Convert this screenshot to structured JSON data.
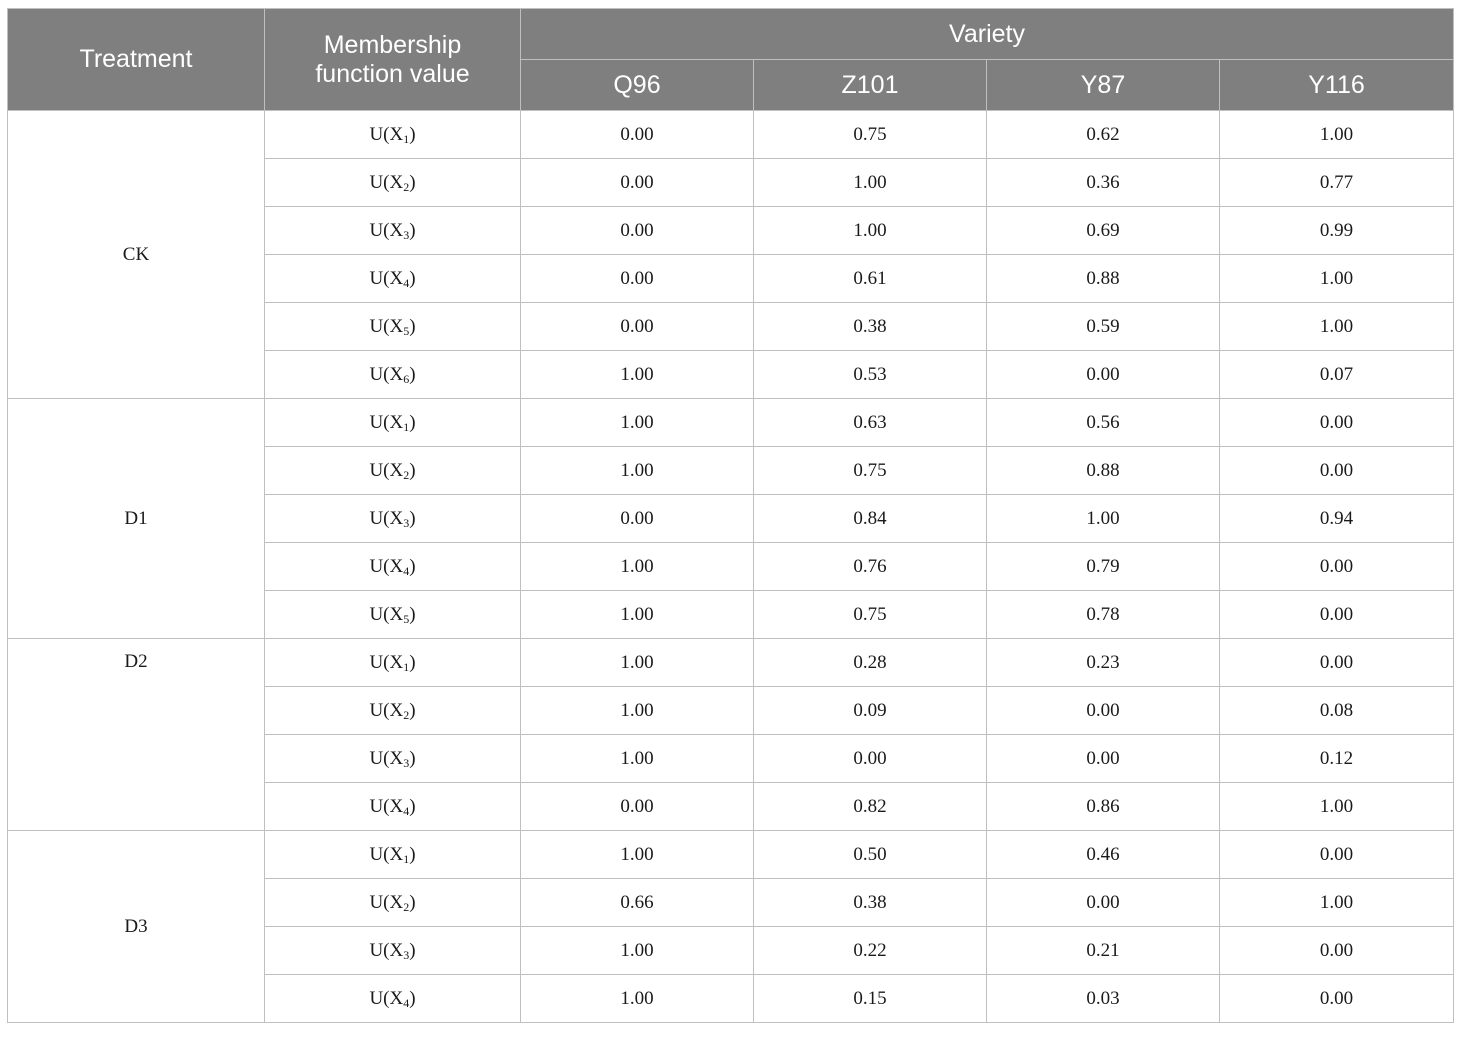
{
  "headers": {
    "treatment": "Treatment",
    "membership": "Membership\nfunction value",
    "variety": "Variety",
    "varieties": [
      "Q96",
      "Z101",
      "Y87",
      "Y116"
    ]
  },
  "groups": [
    {
      "treatment": "CK",
      "rows": [
        {
          "var": "X",
          "sub": "1",
          "values": [
            "0.00",
            "0.75",
            "0.62",
            "1.00"
          ]
        },
        {
          "var": "X",
          "sub": "2",
          "values": [
            "0.00",
            "1.00",
            "0.36",
            "0.77"
          ]
        },
        {
          "var": "X",
          "sub": "3",
          "values": [
            "0.00",
            "1.00",
            "0.69",
            "0.99"
          ]
        },
        {
          "var": "X",
          "sub": "4",
          "values": [
            "0.00",
            "0.61",
            "0.88",
            "1.00"
          ]
        },
        {
          "var": "X",
          "sub": "5",
          "values": [
            "0.00",
            "0.38",
            "0.59",
            "1.00"
          ]
        },
        {
          "var": "X",
          "sub": "6",
          "values": [
            "1.00",
            "0.53",
            "0.00",
            "0.07"
          ]
        }
      ]
    },
    {
      "treatment": "D1",
      "rows": [
        {
          "var": "X",
          "sub": "1",
          "values": [
            "1.00",
            "0.63",
            "0.56",
            "0.00"
          ]
        },
        {
          "var": "X",
          "sub": "2",
          "values": [
            "1.00",
            "0.75",
            "0.88",
            "0.00"
          ]
        },
        {
          "var": "X",
          "sub": "3",
          "values": [
            "0.00",
            "0.84",
            "1.00",
            "0.94"
          ]
        },
        {
          "var": "X",
          "sub": "4",
          "values": [
            "1.00",
            "0.76",
            "0.79",
            "0.00"
          ]
        },
        {
          "var": "X",
          "sub": "5",
          "values": [
            "1.00",
            "0.75",
            "0.78",
            "0.00"
          ]
        }
      ]
    },
    {
      "treatment": "D2",
      "rows": [
        {
          "var": "X",
          "sub": "1",
          "values": [
            "1.00",
            "0.28",
            "0.23",
            "0.00"
          ]
        },
        {
          "var": "X",
          "sub": "2",
          "values": [
            "1.00",
            "0.09",
            "0.00",
            "0.08"
          ]
        },
        {
          "var": "X",
          "sub": "3",
          "values": [
            "1.00",
            "0.00",
            "0.00",
            "0.12"
          ]
        },
        {
          "var": "X",
          "sub": "4",
          "values": [
            "0.00",
            "0.82",
            "0.86",
            "1.00"
          ]
        }
      ]
    },
    {
      "treatment": "D3",
      "rows": [
        {
          "var": "X",
          "sub": "1",
          "values": [
            "1.00",
            "0.50",
            "0.46",
            "0.00"
          ]
        },
        {
          "var": "X",
          "sub": "2",
          "values": [
            "0.66",
            "0.38",
            "0.00",
            "1.00"
          ]
        },
        {
          "var": "X",
          "sub": "3",
          "values": [
            "1.00",
            "0.22",
            "0.21",
            "0.00"
          ]
        },
        {
          "var": "X",
          "sub": "4",
          "values": [
            "1.00",
            "0.15",
            "0.03",
            "0.00"
          ]
        }
      ]
    }
  ]
}
